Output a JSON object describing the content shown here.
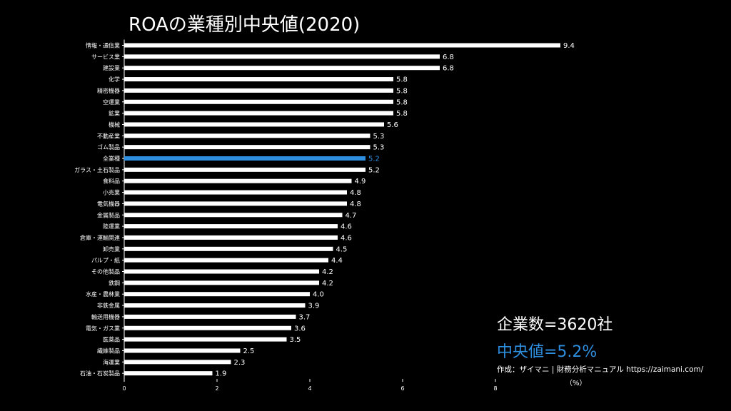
{
  "chart_data": {
    "type": "bar",
    "orientation": "horizontal",
    "title": "ROAの業種別中央値(2020)",
    "categories": [
      "情報・通信業",
      "サービス業",
      "建設業",
      "化学",
      "精密機器",
      "空運業",
      "鉱業",
      "機械",
      "不動産業",
      "ゴム製品",
      "全業種",
      "ガラス・土石製品",
      "食料品",
      "小売業",
      "電気機器",
      "金属製品",
      "陸運業",
      "倉庫・運輸関連",
      "卸売業",
      "パルプ・紙",
      "その他製品",
      "鉄鋼",
      "水産・農林業",
      "非鉄金属",
      "輸送用機器",
      "電気・ガス業",
      "医薬品",
      "繊維製品",
      "海運業",
      "石油・石炭製品"
    ],
    "values": [
      9.4,
      6.8,
      6.8,
      5.8,
      5.8,
      5.8,
      5.8,
      5.6,
      5.3,
      5.3,
      5.2,
      5.2,
      4.9,
      4.8,
      4.8,
      4.7,
      4.6,
      4.6,
      4.5,
      4.4,
      4.2,
      4.2,
      4.0,
      3.9,
      3.7,
      3.6,
      3.5,
      2.5,
      2.3,
      1.9
    ],
    "value_labels": [
      "9.4",
      "6.8",
      "6.8",
      "5.8",
      "5.8",
      "5.8",
      "5.8",
      "5.6",
      "5.3",
      "5.3",
      "5.2",
      "5.2",
      "4.9",
      "4.8",
      "4.8",
      "4.7",
      "4.6",
      "4.6",
      "4.5",
      "4.4",
      "4.2",
      "4.2",
      "4.0",
      "3.9",
      "3.7",
      "3.6",
      "3.5",
      "2.5",
      "2.3",
      "1.9"
    ],
    "highlight_category": "全業種",
    "xlim": [
      0,
      9.4
    ],
    "xticks": [
      "0",
      "2",
      "4",
      "6",
      "8"
    ],
    "xlabel": "（%）",
    "grid": false,
    "colors": {
      "bar": "#ffffff",
      "highlight": "#2e8fe0",
      "background": "#000000"
    }
  },
  "summary": {
    "company_count": "企業数=3620社",
    "median": "中央値=5.2%"
  },
  "credit": "作成：ザイマニ | 財務分析マニュアル https://zaimani.com/"
}
